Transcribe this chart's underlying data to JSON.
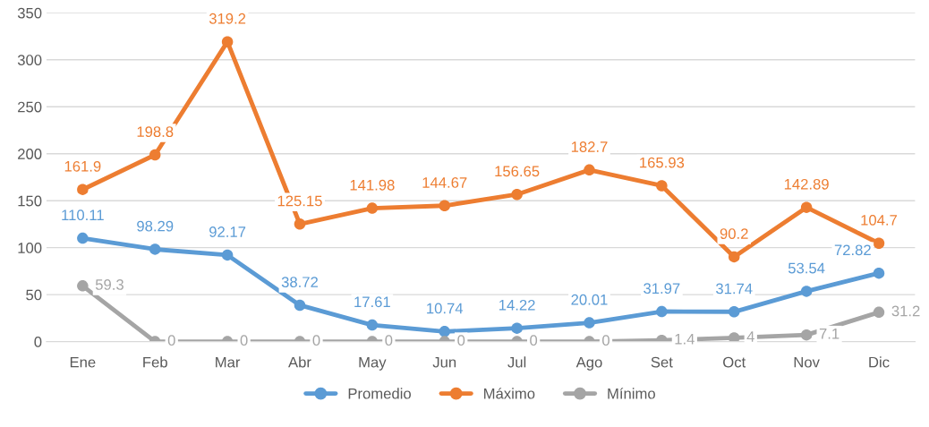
{
  "chart_data": {
    "type": "line",
    "categories": [
      "Ene",
      "Feb",
      "Mar",
      "Abr",
      "May",
      "Jun",
      "Jul",
      "Ago",
      "Set",
      "Oct",
      "Nov",
      "Dic"
    ],
    "series": [
      {
        "name": "Promedio",
        "color": "#5b9bd5",
        "values": [
          110.11,
          98.29,
          92.17,
          38.72,
          17.61,
          10.74,
          14.22,
          20.01,
          31.97,
          31.74,
          53.54,
          72.82
        ]
      },
      {
        "name": "Máximo",
        "color": "#ed7d31",
        "values": [
          161.9,
          198.8,
          319.2,
          125.15,
          141.98,
          144.67,
          156.65,
          182.7,
          165.93,
          90.2,
          142.89,
          104.7
        ]
      },
      {
        "name": "Mínimo",
        "color": "#a5a5a5",
        "values": [
          59.3,
          0,
          0,
          0,
          0,
          0,
          0,
          0,
          1.4,
          4,
          7.1,
          31.2
        ]
      }
    ],
    "ylim": [
      0,
      350
    ],
    "yticks": [
      0,
      50,
      100,
      150,
      200,
      250,
      300,
      350
    ],
    "grid": "y",
    "legend": "bottom",
    "marker": "circle",
    "line_style": "solid",
    "data_labels": true
  }
}
